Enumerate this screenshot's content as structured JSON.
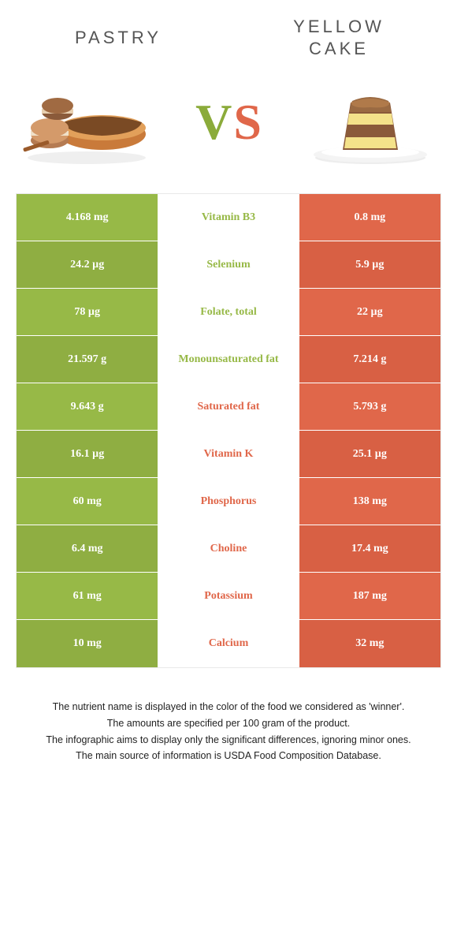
{
  "colors": {
    "pastry": "#97b947",
    "cake": "#e0674a",
    "pastry_alt": "#8fae42",
    "cake_alt": "#d86044",
    "bg": "#ffffff",
    "text": "#333333"
  },
  "header": {
    "left_title": "PASTRY",
    "right_title_line1": "YELLOW",
    "right_title_line2": "CAKE"
  },
  "vs": {
    "v": "V",
    "s": "S"
  },
  "table": {
    "type": "comparison-table",
    "rows": [
      {
        "nutrient": "Vitamin B3",
        "left": "4.168 mg",
        "right": "0.8 mg",
        "winner": "left"
      },
      {
        "nutrient": "Selenium",
        "left": "24.2 µg",
        "right": "5.9 µg",
        "winner": "left"
      },
      {
        "nutrient": "Folate, total",
        "left": "78 µg",
        "right": "22 µg",
        "winner": "left"
      },
      {
        "nutrient": "Monounsaturated fat",
        "left": "21.597 g",
        "right": "7.214 g",
        "winner": "left"
      },
      {
        "nutrient": "Saturated fat",
        "left": "9.643 g",
        "right": "5.793 g",
        "winner": "right"
      },
      {
        "nutrient": "Vitamin K",
        "left": "16.1 µg",
        "right": "25.1 µg",
        "winner": "right"
      },
      {
        "nutrient": "Phosphorus",
        "left": "60 mg",
        "right": "138 mg",
        "winner": "right"
      },
      {
        "nutrient": "Choline",
        "left": "6.4 mg",
        "right": "17.4 mg",
        "winner": "right"
      },
      {
        "nutrient": "Potassium",
        "left": "61 mg",
        "right": "187 mg",
        "winner": "right"
      },
      {
        "nutrient": "Calcium",
        "left": "10 mg",
        "right": "32 mg",
        "winner": "right"
      }
    ]
  },
  "footer": {
    "line1": "The nutrient name is displayed in the color of the food we considered as 'winner'.",
    "line2": "The amounts are specified per 100 gram of the product.",
    "line3": "The infographic aims to display only the significant differences, ignoring minor ones.",
    "line4": "The main source of information is USDA Food Composition Database."
  }
}
